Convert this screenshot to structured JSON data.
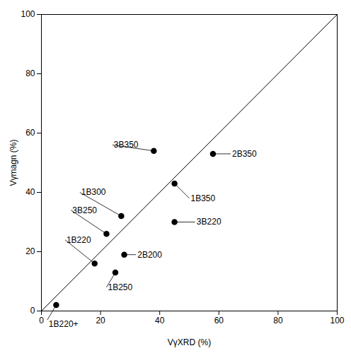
{
  "chart_data": {
    "type": "scatter",
    "x_label": "VγXRD (%)",
    "y_label": "Vγmagn (%)",
    "x": [
      5,
      18,
      22,
      27,
      28,
      25,
      38,
      45,
      45,
      58
    ],
    "values": [
      2,
      16,
      26,
      32,
      19,
      13,
      54,
      43,
      30,
      53
    ],
    "color": "#000000",
    "marker": "circle",
    "reference_line": {
      "x": [
        0,
        100
      ],
      "values": [
        0,
        100
      ],
      "color": "#000000"
    },
    "annotations": [
      {
        "text": "1B220+",
        "x": 5,
        "y": 2,
        "text_x": 2,
        "text_y": -3
      },
      {
        "text": "1B220",
        "x": 18,
        "y": 16,
        "text_x": 8,
        "text_y": 24
      },
      {
        "text": "3B250",
        "x": 22,
        "y": 26,
        "text_x": 10,
        "text_y": 34
      },
      {
        "text": "1B300",
        "x": 27,
        "y": 32,
        "text_x": 13,
        "text_y": 40
      },
      {
        "text": "2B200",
        "x": 28,
        "y": 19,
        "text_x": 32,
        "text_y": 19
      },
      {
        "text": "1B250",
        "x": 25,
        "y": 13,
        "text_x": 22,
        "text_y": 8
      },
      {
        "text": "3B350",
        "x": 38,
        "y": 54,
        "text_x": 24,
        "text_y": 56
      },
      {
        "text": "1B350",
        "x": 45,
        "y": 43,
        "text_x": 50,
        "text_y": 38
      },
      {
        "text": "3B220",
        "x": 45,
        "y": 30,
        "text_x": 52,
        "text_y": 30
      },
      {
        "text": "2B350",
        "x": 58,
        "y": 53,
        "text_x": 64,
        "text_y": 53
      }
    ],
    "xlim": [
      0,
      100
    ],
    "ylim": [
      0,
      100
    ],
    "xticks": [
      0,
      20,
      40,
      60,
      80,
      100
    ],
    "yticks": [
      0,
      20,
      40,
      60,
      80,
      100
    ],
    "grid": false
  }
}
